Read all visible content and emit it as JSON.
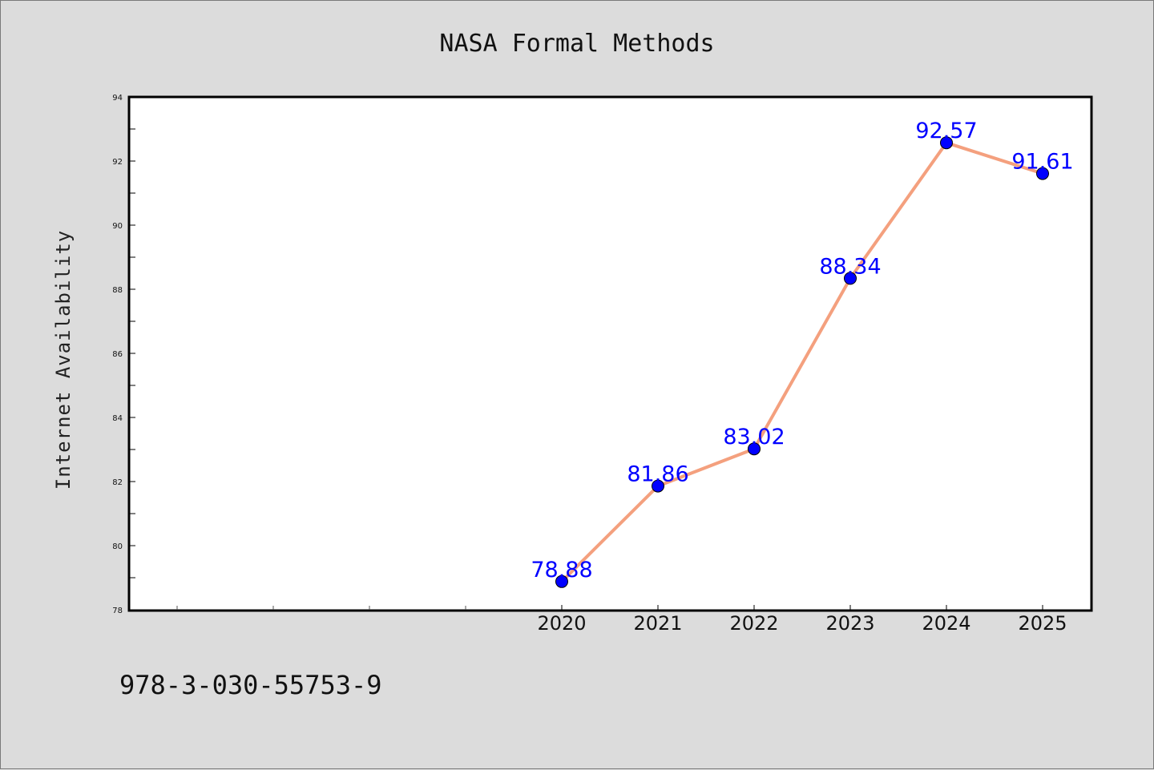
{
  "chart_data": {
    "type": "line",
    "title": "NASA Formal Methods",
    "xlabel": "",
    "ylabel": "Internet Availability",
    "x": [
      "2020",
      "2021",
      "2022",
      "2023",
      "2024",
      "2025"
    ],
    "series": [
      {
        "values": [
          78.88,
          81.86,
          83.02,
          88.34,
          92.57,
          91.61
        ]
      }
    ],
    "data_labels": [
      "78.88",
      "81.86",
      "83.02",
      "88.34",
      "92.57",
      "91.61"
    ],
    "ylim": [
      78,
      94
    ],
    "y_ticks": [
      "78",
      "80",
      "82",
      "84",
      "86",
      "88",
      "90",
      "92",
      "94"
    ],
    "grid": false,
    "line_color": "#f4a07e",
    "marker_color": "#0000ff",
    "label_color": "#0000ff"
  },
  "footer_text": "978-3-030-55753-9"
}
